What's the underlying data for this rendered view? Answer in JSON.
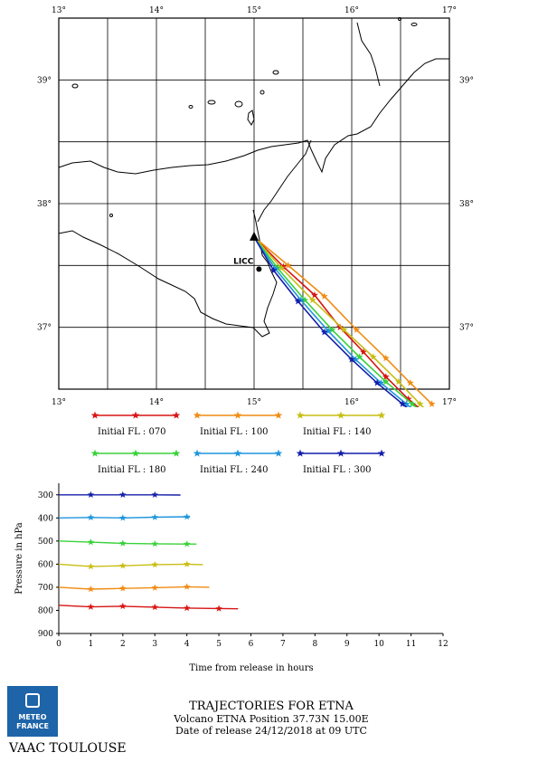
{
  "chart_data": [
    {
      "type": "line",
      "subtype": "trajectory-map",
      "x_ticks": [
        "13°",
        "14°",
        "15°",
        "16°",
        "17°"
      ],
      "y_ticks": [
        "37°",
        "38°",
        "39°"
      ],
      "xlim": [
        13,
        17
      ],
      "ylim": [
        36.5,
        39.5
      ],
      "grid": true,
      "station": {
        "label": "LICC",
        "lon": 15.05,
        "lat": 37.47
      },
      "volcano": {
        "lon": 15.0,
        "lat": 37.73
      },
      "series": [
        {
          "name": "Initial FL : 070",
          "color": "#d81414",
          "points": [
            [
              15.0,
              37.73
            ],
            [
              15.3,
              37.49
            ],
            [
              15.62,
              37.26
            ],
            [
              15.88,
              37.0
            ],
            [
              16.12,
              36.8
            ],
            [
              16.35,
              36.6
            ],
            [
              16.58,
              36.42
            ],
            [
              16.76,
              36.3
            ]
          ]
        },
        {
          "name": "Initial FL : 100",
          "color": "#f08c14",
          "points": [
            [
              15.0,
              37.73
            ],
            [
              15.35,
              37.5
            ],
            [
              15.72,
              37.25
            ],
            [
              16.05,
              36.98
            ],
            [
              16.35,
              36.75
            ],
            [
              16.6,
              36.55
            ],
            [
              16.82,
              36.38
            ]
          ]
        },
        {
          "name": "Initial FL : 140",
          "color": "#c8be14",
          "points": [
            [
              15.0,
              37.73
            ],
            [
              15.28,
              37.48
            ],
            [
              15.6,
              37.22
            ],
            [
              15.92,
              36.98
            ],
            [
              16.22,
              36.76
            ],
            [
              16.48,
              36.56
            ],
            [
              16.7,
              36.38
            ],
            [
              16.82,
              36.28
            ]
          ]
        },
        {
          "name": "Initial FL : 180",
          "color": "#3ad23a",
          "points": [
            [
              15.0,
              37.73
            ],
            [
              15.24,
              37.48
            ],
            [
              15.52,
              37.22
            ],
            [
              15.8,
              36.98
            ],
            [
              16.08,
              36.76
            ],
            [
              16.35,
              36.56
            ],
            [
              16.62,
              36.38
            ],
            [
              16.82,
              36.25
            ]
          ]
        },
        {
          "name": "Initial FL : 240",
          "color": "#1e96dc",
          "points": [
            [
              15.0,
              37.73
            ],
            [
              15.22,
              37.47
            ],
            [
              15.48,
              37.22
            ],
            [
              15.76,
              36.97
            ],
            [
              16.04,
              36.74
            ],
            [
              16.3,
              36.55
            ],
            [
              16.56,
              36.38
            ],
            [
              16.8,
              36.23
            ]
          ]
        },
        {
          "name": "Initial FL : 300",
          "color": "#141eaa",
          "points": [
            [
              15.0,
              37.73
            ],
            [
              15.2,
              37.46
            ],
            [
              15.45,
              37.21
            ],
            [
              15.72,
              36.96
            ],
            [
              16.0,
              36.74
            ],
            [
              16.26,
              36.55
            ],
            [
              16.52,
              36.38
            ],
            [
              16.78,
              36.22
            ]
          ]
        }
      ]
    },
    {
      "type": "line",
      "subtype": "vertical-profile",
      "xlabel": "Time from release in hours",
      "ylabel": "Pressure in hPa",
      "xlim": [
        0,
        12
      ],
      "ylim": [
        900,
        250
      ],
      "x_ticks": [
        "0",
        "1",
        "2",
        "3",
        "4",
        "5",
        "6",
        "7",
        "8",
        "9",
        "10",
        "11",
        "12"
      ],
      "y_ticks": [
        "300",
        "400",
        "500",
        "600",
        "700",
        "800",
        "900"
      ],
      "series": [
        {
          "name": "Initial FL : 070",
          "color": "#d81414",
          "points": [
            [
              0,
              778
            ],
            [
              1,
              785
            ],
            [
              2,
              782
            ],
            [
              3,
              786
            ],
            [
              4,
              790
            ],
            [
              5,
              792
            ],
            [
              5.6,
              793
            ]
          ]
        },
        {
          "name": "Initial FL : 100",
          "color": "#f08c14",
          "points": [
            [
              0,
              700
            ],
            [
              1,
              708
            ],
            [
              2,
              705
            ],
            [
              3,
              702
            ],
            [
              4,
              698
            ],
            [
              4.7,
              700
            ]
          ]
        },
        {
          "name": "Initial FL : 140",
          "color": "#c8be14",
          "points": [
            [
              0,
              600
            ],
            [
              1,
              610
            ],
            [
              2,
              607
            ],
            [
              3,
              602
            ],
            [
              4,
              600
            ],
            [
              4.5,
              602
            ]
          ]
        },
        {
          "name": "Initial FL : 180",
          "color": "#3ad23a",
          "points": [
            [
              0,
              500
            ],
            [
              1,
              505
            ],
            [
              2,
              510
            ],
            [
              3,
              512
            ],
            [
              4,
              513
            ],
            [
              4.3,
              513
            ]
          ]
        },
        {
          "name": "Initial FL : 240",
          "color": "#1e96dc",
          "points": [
            [
              0,
              400
            ],
            [
              1,
              398
            ],
            [
              2,
              400
            ],
            [
              3,
              397
            ],
            [
              4,
              395
            ],
            [
              4.1,
              396
            ]
          ]
        },
        {
          "name": "Initial FL : 300",
          "color": "#141eaa",
          "points": [
            [
              0,
              300
            ],
            [
              1,
              300
            ],
            [
              2,
              300
            ],
            [
              3,
              300
            ],
            [
              3.8,
              301
            ]
          ]
        }
      ]
    }
  ],
  "footer": {
    "title": "TRAJECTORIES FOR ETNA",
    "position_line": "Volcano ETNA Position 37.73N 15.00E",
    "release_line": "Date of release 24/12/2018 at 09 UTC",
    "vaac": "VAAC TOULOUSE",
    "logo_line1": "METEO",
    "logo_line2": "FRANCE"
  }
}
